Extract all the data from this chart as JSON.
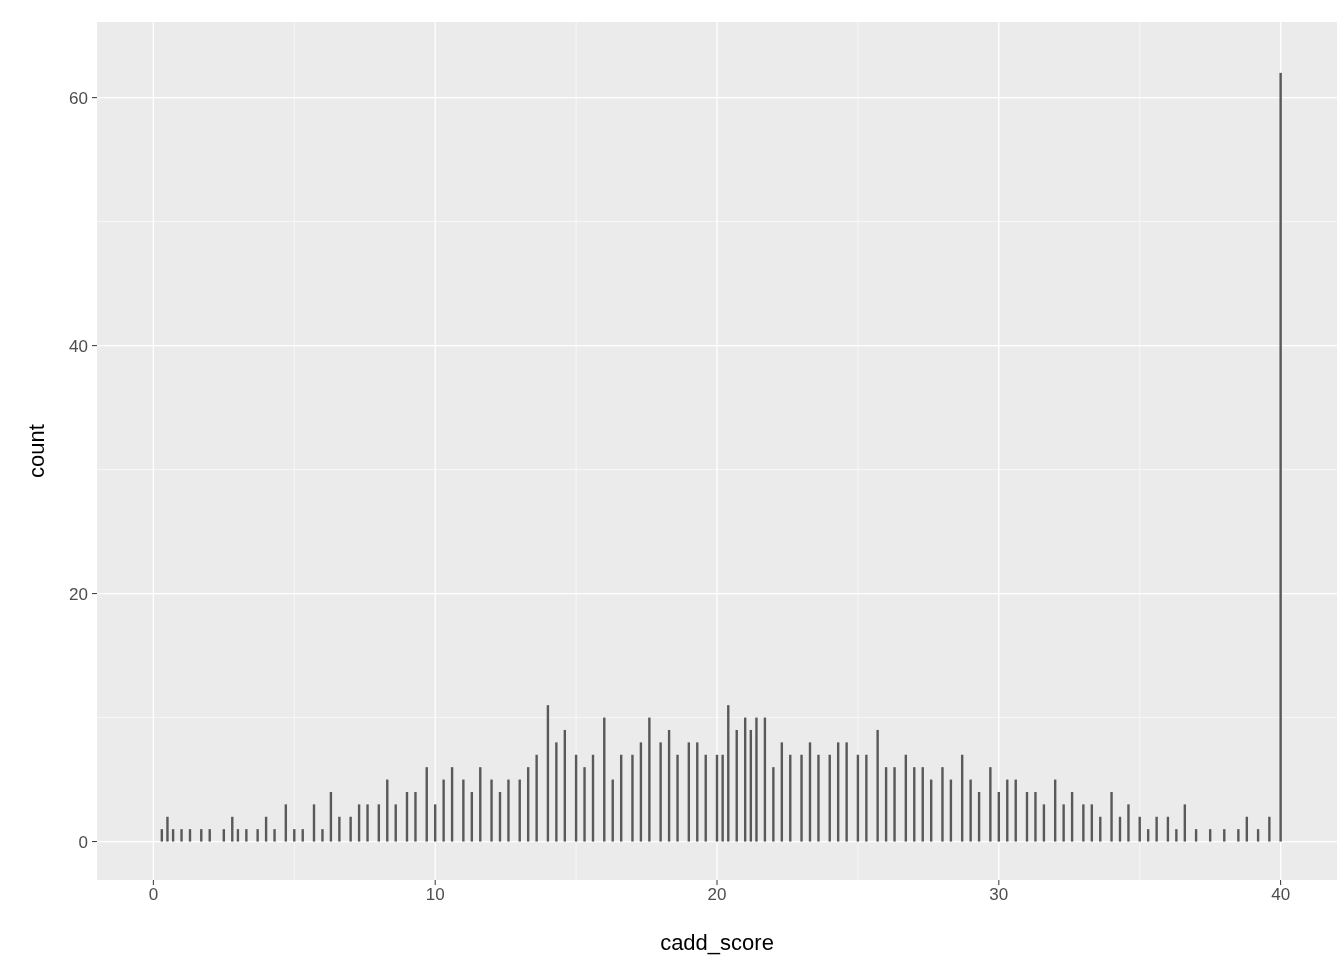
{
  "chart_data": {
    "type": "bar",
    "xlabel": "cadd_score",
    "ylabel": "count",
    "color": "#595959",
    "x": [
      0.3,
      0.5,
      0.7,
      1.0,
      1.3,
      1.7,
      2.0,
      2.5,
      2.8,
      3.0,
      3.3,
      3.7,
      4.0,
      4.3,
      4.7,
      5.0,
      5.3,
      5.7,
      6.0,
      6.3,
      6.6,
      7.0,
      7.3,
      7.6,
      8.0,
      8.3,
      8.6,
      9.0,
      9.3,
      9.7,
      10.0,
      10.3,
      10.6,
      11.0,
      11.3,
      11.6,
      12.0,
      12.3,
      12.6,
      13.0,
      13.3,
      13.6,
      14.0,
      14.3,
      14.6,
      15.0,
      15.3,
      15.6,
      16.0,
      16.3,
      16.6,
      17.0,
      17.3,
      17.6,
      18.0,
      18.3,
      18.6,
      19.0,
      19.3,
      19.6,
      20.0,
      20.2,
      20.4,
      20.7,
      21.0,
      21.2,
      21.4,
      21.7,
      22.0,
      22.3,
      22.6,
      23.0,
      23.3,
      23.6,
      24.0,
      24.3,
      24.6,
      25.0,
      25.3,
      25.7,
      26.0,
      26.3,
      26.7,
      27.0,
      27.3,
      27.6,
      28.0,
      28.3,
      28.7,
      29.0,
      29.3,
      29.7,
      30.0,
      30.3,
      30.6,
      31.0,
      31.3,
      31.6,
      32.0,
      32.3,
      32.6,
      33.0,
      33.3,
      33.6,
      34.0,
      34.3,
      34.6,
      35.0,
      35.3,
      35.6,
      36.0,
      36.3,
      36.6,
      37.0,
      37.5,
      38.0,
      38.5,
      38.8,
      39.2,
      39.6,
      40.0
    ],
    "values": [
      1,
      2,
      1,
      1,
      1,
      1,
      1,
      1,
      2,
      1,
      1,
      1,
      2,
      1,
      3,
      1,
      1,
      3,
      1,
      4,
      2,
      2,
      3,
      3,
      3,
      5,
      3,
      4,
      4,
      6,
      3,
      5,
      6,
      5,
      4,
      6,
      5,
      4,
      5,
      5,
      6,
      7,
      11,
      8,
      9,
      7,
      6,
      7,
      10,
      5,
      7,
      7,
      8,
      10,
      8,
      9,
      7,
      8,
      8,
      7,
      7,
      7,
      11,
      9,
      10,
      9,
      10,
      10,
      6,
      8,
      7,
      7,
      8,
      7,
      7,
      8,
      8,
      7,
      7,
      9,
      6,
      6,
      7,
      6,
      6,
      5,
      6,
      5,
      7,
      5,
      4,
      6,
      4,
      5,
      5,
      4,
      4,
      3,
      5,
      3,
      4,
      3,
      3,
      2,
      4,
      2,
      3,
      2,
      1,
      2,
      2,
      1,
      3,
      1,
      1,
      1,
      1,
      2,
      1,
      2,
      62
    ],
    "xlim": [
      -2.0,
      42.0
    ],
    "ylim": [
      -3.1,
      66.1
    ],
    "xticks": [
      0,
      10,
      20,
      30,
      40
    ],
    "yticks": [
      0,
      20,
      40,
      60
    ],
    "grid": true
  }
}
